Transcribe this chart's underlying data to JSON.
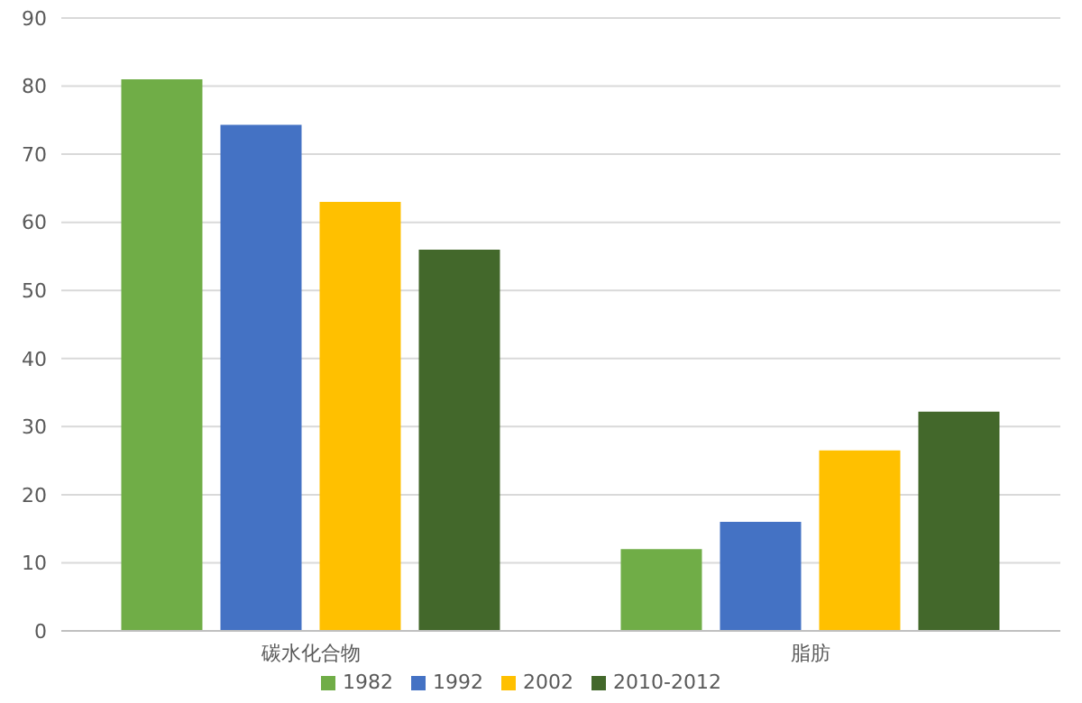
{
  "chart_data": {
    "type": "bar",
    "categories": [
      "碳水化合物",
      "脂肪"
    ],
    "series": [
      {
        "name": "1982",
        "color": "#70ad47",
        "values": [
          81,
          12
        ]
      },
      {
        "name": "1992",
        "color": "#4472c4",
        "values": [
          74.3,
          16
        ]
      },
      {
        "name": "2002",
        "color": "#ffc000",
        "values": [
          63,
          26.5
        ]
      },
      {
        "name": "2010-2012",
        "color": "#43682b",
        "values": [
          56,
          32.2
        ]
      }
    ],
    "ylim": [
      0,
      90
    ],
    "yticks": [
      0,
      10,
      20,
      30,
      40,
      50,
      60,
      70,
      80,
      90
    ],
    "grid": "y",
    "legend": "bottom"
  }
}
